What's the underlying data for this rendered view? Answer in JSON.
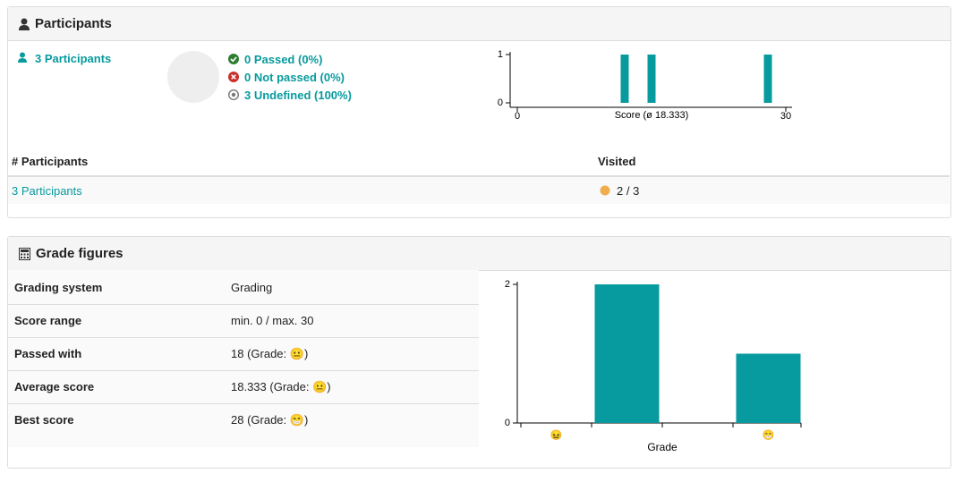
{
  "participants_panel": {
    "title": "Participants",
    "link": "3 Participants",
    "status": [
      "0 Passed (0%)",
      "0 Not passed (0%)",
      "3 Undefined (100%)"
    ]
  },
  "participants_table": {
    "headers": [
      "# Participants",
      "Visited"
    ],
    "rows": [
      [
        "3 Participants",
        "2 / 3"
      ]
    ]
  },
  "grade_panel": {
    "title": "Grade figures",
    "rows": [
      [
        "Grading system",
        "Grading"
      ],
      [
        "Score range",
        "min. 0 / max. 30"
      ],
      [
        "Passed with",
        "18 (Grade: 😐)"
      ],
      [
        "Average score",
        "18.333 (Grade: 😐)"
      ],
      [
        "Best score",
        "28 (Grade: 😁)"
      ]
    ]
  },
  "chart_data": [
    {
      "type": "bar",
      "xlabel": "Score (ø 18.333)",
      "x": [
        12,
        15,
        28
      ],
      "values": [
        1,
        1,
        1
      ],
      "color": "#079a9e",
      "xlim": [
        0,
        30
      ],
      "xticks": [
        0,
        30
      ],
      "ylim": [
        0,
        1
      ],
      "yticks": [
        0,
        1
      ]
    },
    {
      "type": "bar",
      "xlabel": "Grade",
      "categories": [
        "😖",
        null,
        null,
        "😁"
      ],
      "values": [
        0,
        2,
        0,
        1
      ],
      "color": "#079a9e",
      "ylim": [
        0,
        2
      ],
      "yticks": [
        0,
        2
      ]
    }
  ]
}
